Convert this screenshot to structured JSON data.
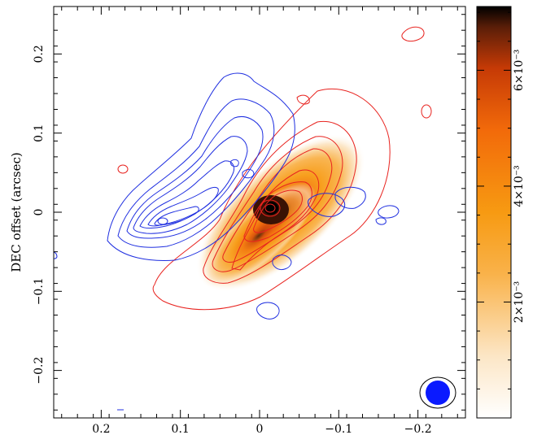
{
  "chart_data": {
    "type": "heatmap",
    "ylabel": "DEC offset (arcsec)",
    "xlabel": "",
    "title": "",
    "xlim": [
      0.26,
      -0.26
    ],
    "ylim": [
      -0.26,
      0.26
    ],
    "x_ticks": [
      {
        "value": 0.2,
        "label": "0.2"
      },
      {
        "value": 0.1,
        "label": "0.1"
      },
      {
        "value": 0.0,
        "label": "0"
      },
      {
        "value": -0.1,
        "label": "−0.1"
      },
      {
        "value": -0.2,
        "label": "−0.2"
      }
    ],
    "y_ticks": [
      {
        "value": 0.2,
        "label": "0.2"
      },
      {
        "value": 0.1,
        "label": "0.1"
      },
      {
        "value": 0.0,
        "label": "0"
      },
      {
        "value": -0.1,
        "label": "−0.1"
      },
      {
        "value": -0.2,
        "label": "−0.2"
      }
    ],
    "colorbar": {
      "range": [
        0,
        0.0071
      ],
      "ticks": [
        {
          "value": 0.002,
          "label": "2×10⁻³"
        },
        {
          "value": 0.004,
          "label": "4×10⁻³"
        },
        {
          "value": 0.006,
          "label": "6×10⁻³"
        }
      ],
      "colors": [
        "#ffffff",
        "#fce6c6",
        "#f9b24a",
        "#f79a12",
        "#f26a0a",
        "#c63a06",
        "#5a1e08",
        "#000000"
      ]
    },
    "colormap_peak": {
      "x": -0.01,
      "y": 0.002,
      "value": 0.0071
    },
    "red_contours_center": {
      "x": -0.02,
      "y": -0.02
    },
    "blue_contours_center": {
      "x": 0.12,
      "y": 0.0
    },
    "beam": {
      "x": -0.22,
      "y": -0.23,
      "major": 0.025,
      "minor": 0.022
    },
    "colors": {
      "red_contour": "#e8231f",
      "blue_contour": "#1f2fe0",
      "beam_fill": "#0a1aff"
    }
  }
}
